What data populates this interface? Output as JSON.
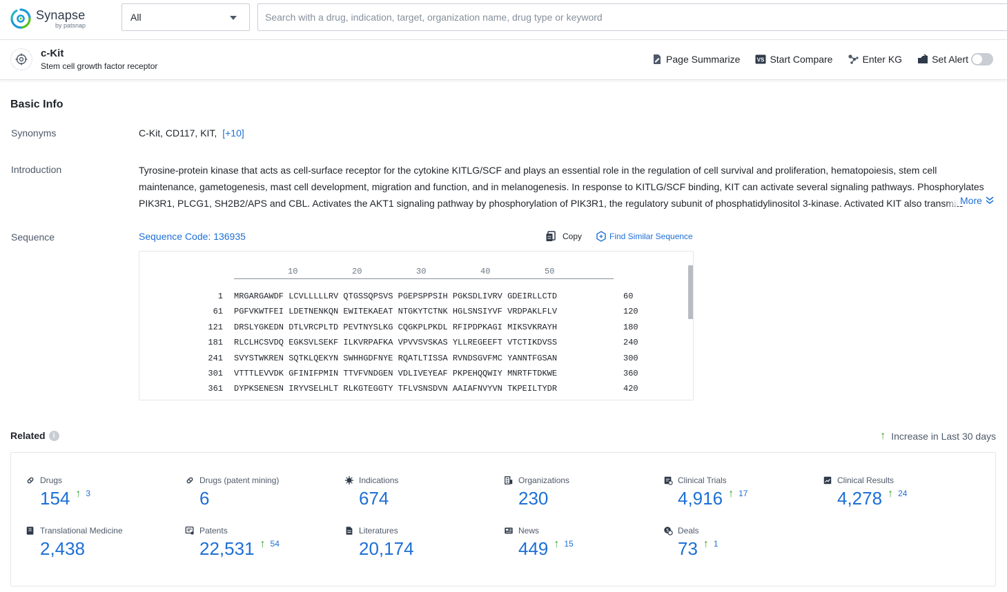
{
  "brand": {
    "name": "Synapse",
    "sub": "by patsnap"
  },
  "search": {
    "scope": "All",
    "placeholder": "Search with a drug, indication, target, organization name, drug type or keyword"
  },
  "entity": {
    "title": "c-Kit",
    "subtitle": "Stem cell growth factor receptor"
  },
  "actions": {
    "summarize": "Page Summarize",
    "compare": "Start Compare",
    "kg": "Enter KG",
    "alert": "Set Alert",
    "alert_on": false
  },
  "basic_info": {
    "title": "Basic Info",
    "synonyms_label": "Synonyms",
    "synonyms": "C-Kit,  CD117,  KIT,",
    "synonyms_more": "[+10]",
    "intro_label": "Introduction",
    "intro": "Tyrosine-protein kinase that acts as cell-surface receptor for the cytokine KITLG/SCF and plays an essential role in the regulation of cell survival and proliferation, hematopoiesis, stem cell maintenance, gametogenesis, mast cell development, migration and function, and in melanogenesis. In response to KITLG/SCF binding, KIT can activate several signaling pathways. Phosphorylates PIK3R1, PLCG1, SH2B2/APS and CBL. Activates the AKT1 signaling pathway by phosphorylation of PIK3R1, the regulatory subunit of phosphatidylinositol 3-kinase. Activated KIT also transmits",
    "intro_more": "More",
    "sequence_label": "Sequence",
    "sequence_code": "Sequence Code: 136935",
    "copy": "Copy",
    "find_similar": "Find Similar Sequence"
  },
  "sequence": {
    "ruler": [
      "10",
      "20",
      "30",
      "40",
      "50"
    ],
    "rows": [
      {
        "start": "1",
        "residues": "MRGARGAWDF LCVLLLLLRV QTGSSQPSVS PGEPSPPSIH PGKSDLIVRV GDEIRLLCTD",
        "end": "60"
      },
      {
        "start": "61",
        "residues": "PGFVKWTFEI LDETNENKQN EWITEKAEAT NTGKYTCTNK HGLSNSIYVF VRDPAKLFLV",
        "end": "120"
      },
      {
        "start": "121",
        "residues": "DRSLYGKEDN DTLVRCPLTD PEVTNYSLKG CQGKPLPKDL RFIPDPKAGI MIKSVKRAYH",
        "end": "180"
      },
      {
        "start": "181",
        "residues": "RLCLHCSVDQ EGKSVLSEKF ILKVRPAFKA VPVVSVSKAS YLLREGEEFT VTCTIKDVSS",
        "end": "240"
      },
      {
        "start": "241",
        "residues": "SVYSTWKREN SQTKLQEKYN SWHHGDFNYE RQATLTISSA RVNDSGVFMC YANNTFGSAN",
        "end": "300"
      },
      {
        "start": "301",
        "residues": "VTTTLEVVDK GFINIFPMIN TTVFVNDGEN VDLIVEYEAF PKPEHQQWIY MNRTFTDKWE",
        "end": "360"
      },
      {
        "start": "361",
        "residues": "DYPKSENESN IRYVSELHLT RLKGTEGGTY TFLVSNSDVN AAIAFNVYVN TKPEILTYDR",
        "end": "420"
      }
    ]
  },
  "related": {
    "title": "Related",
    "legend": "Increase in Last 30 days",
    "stats": [
      {
        "label": "Drugs",
        "value": "154",
        "inc": "3",
        "icon": "pill-icon"
      },
      {
        "label": "Drugs (patent mining)",
        "value": "6",
        "inc": "",
        "icon": "pill-icon"
      },
      {
        "label": "Indications",
        "value": "674",
        "inc": "",
        "icon": "virus-icon"
      },
      {
        "label": "Organizations",
        "value": "230",
        "inc": "",
        "icon": "building-icon"
      },
      {
        "label": "Clinical Trials",
        "value": "4,916",
        "inc": "17",
        "icon": "clipboard-icon"
      },
      {
        "label": "Clinical Results",
        "value": "4,278",
        "inc": "24",
        "icon": "chart-doc-icon"
      },
      {
        "label": "Translational Medicine",
        "value": "2,438",
        "inc": "",
        "icon": "book-icon"
      },
      {
        "label": "Patents",
        "value": "22,531",
        "inc": "54",
        "icon": "patent-icon"
      },
      {
        "label": "Literatures",
        "value": "20,174",
        "inc": "",
        "icon": "document-icon"
      },
      {
        "label": "News",
        "value": "449",
        "inc": "15",
        "icon": "newspaper-icon"
      },
      {
        "label": "Deals",
        "value": "73",
        "inc": "1",
        "icon": "deal-icon"
      }
    ]
  },
  "colors": {
    "accent": "#1d6fd6",
    "increase": "#3aa32e",
    "logo_blue": "#1d9bd6",
    "logo_green": "#52c41a"
  }
}
